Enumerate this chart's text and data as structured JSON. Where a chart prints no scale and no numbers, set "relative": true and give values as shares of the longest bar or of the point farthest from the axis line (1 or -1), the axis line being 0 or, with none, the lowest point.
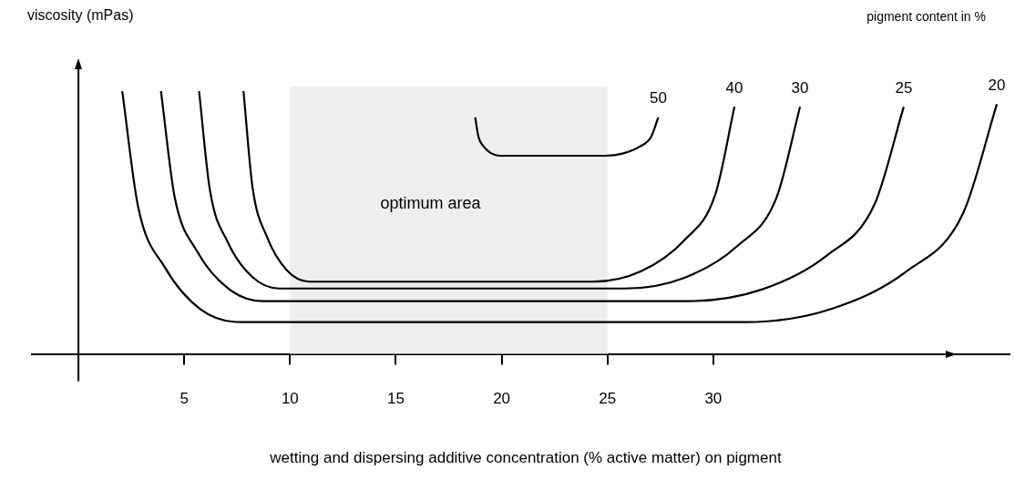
{
  "chart_data": {
    "type": "line",
    "relative": true,
    "ylabel": "viscosity (mPas)",
    "xlabel": "wetting and dispersing additive concentration (% active matter) on pigment",
    "legend_title": "pigment content in %",
    "xlim": [
      -2.2,
      44
    ],
    "xticks": [
      5,
      10,
      15,
      20,
      25,
      30
    ],
    "legend": false,
    "grid": false,
    "marker": "none",
    "line_style": "solid",
    "bands": [
      {
        "axis": "x",
        "from": 10,
        "to": 25,
        "label": "optimum area",
        "color": "#eeeeee"
      }
    ],
    "series": [
      {
        "name": "50",
        "color": "#000000",
        "x": [
          18.75,
          18.9,
          19.16,
          19.51,
          19.9,
          24.9,
          25.75,
          26.51,
          27.07,
          27.4
        ],
        "values": [
          0.9,
          0.827,
          0.788,
          0.763,
          0.754,
          0.754,
          0.763,
          0.788,
          0.827,
          0.9
        ]
      },
      {
        "name": "40",
        "color": "#000000",
        "x": [
          7.8,
          8.22,
          8.91,
          9.84,
          10.9,
          24.3,
          26.59,
          28.61,
          30.1,
          31
        ],
        "values": [
          1,
          0.638,
          0.445,
          0.319,
          0.275,
          0.275,
          0.315,
          0.431,
          0.608,
          0.94
        ]
      },
      {
        "name": "30",
        "color": "#000000",
        "x": [
          5.7,
          6.21,
          7.06,
          8.2,
          9.5,
          25.8,
          28.64,
          31.14,
          32.99,
          34.1
        ],
        "values": [
          1,
          0.625,
          0.425,
          0.294,
          0.249,
          0.249,
          0.29,
          0.411,
          0.595,
          0.94
        ]
      },
      {
        "name": "25",
        "color": "#000000",
        "x": [
          3.9,
          4.54,
          5.61,
          7.06,
          8.7,
          28.8,
          32.29,
          35.36,
          37.63,
          39
        ],
        "values": [
          1,
          0.6,
          0.39,
          0.25,
          0.201,
          0.201,
          0.245,
          0.374,
          0.571,
          0.94
        ]
      },
      {
        "name": "20",
        "color": "#000000",
        "x": [
          2.07,
          2.82,
          4.08,
          5.77,
          7.7,
          31.5,
          35.57,
          39.15,
          41.81,
          43.4
        ],
        "values": [
          1,
          0.56,
          0.33,
          0.17,
          0.121,
          0.121,
          0.171,
          0.315,
          0.536,
          0.95
        ]
      }
    ]
  }
}
